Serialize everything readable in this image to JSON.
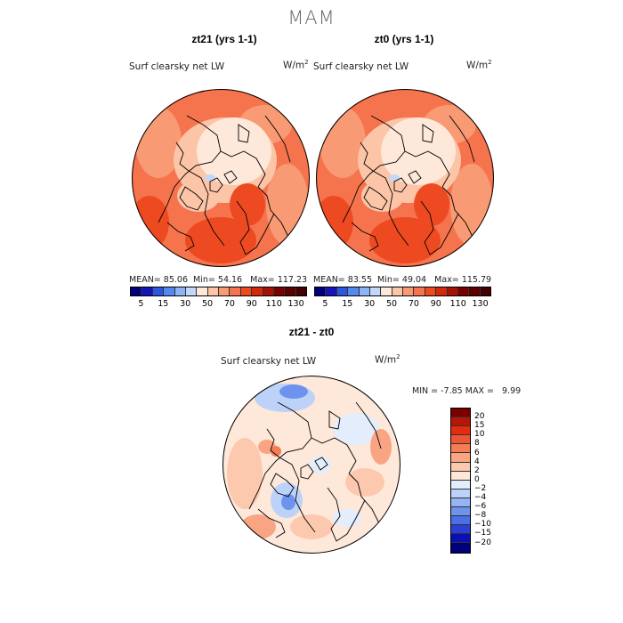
{
  "season": "MAM",
  "colors": {
    "abs": [
      "#00007a",
      "#1515b8",
      "#2c56de",
      "#5489ef",
      "#8cb3f5",
      "#c2d8f9",
      "#fde8da",
      "#fcc5a7",
      "#f89a74",
      "#f5744d",
      "#ee4a22",
      "#d42a0c",
      "#a61206",
      "#780000"
    ],
    "diff": [
      "#00007a",
      "#0a0fb0",
      "#2b3fd6",
      "#4a6fe6",
      "#6d93ef",
      "#94b4f4",
      "#bcd2f8",
      "#e3edfc",
      "#fde8da",
      "#fcc9ae",
      "#f9a583",
      "#f57d56",
      "#ef5530",
      "#e22c10",
      "#b81505",
      "#7a0000"
    ]
  },
  "chart_data": [
    {
      "type": "heatmap",
      "title": "zt21 (yrs 1-1)",
      "variable": "Surf clearsky net LW",
      "units": "W/m",
      "stats": {
        "mean_label": "MEAN=",
        "mean": "85.06",
        "min_label": "Min=",
        "min": "54.16",
        "max_label": "Max=",
        "max": "117.23"
      },
      "colorbar_ticks": [
        "5",
        "15",
        "30",
        "50",
        "70",
        "90",
        "110",
        "130"
      ],
      "colorbar_levels": [
        -1000000000.0,
        5,
        10,
        15,
        20,
        30,
        40,
        50,
        60,
        70,
        80,
        90,
        100,
        110,
        120,
        130,
        1000000000.0
      ]
    },
    {
      "type": "heatmap",
      "title": "zt0 (yrs 1-1)",
      "variable": "Surf clearsky net LW",
      "units": "W/m",
      "stats": {
        "mean_label": "MEAN=",
        "mean": "83.55",
        "min_label": "Min=",
        "min": "49.04",
        "max_label": "Max=",
        "max": "115.79"
      },
      "colorbar_ticks": [
        "5",
        "15",
        "30",
        "50",
        "70",
        "90",
        "110",
        "130"
      ]
    },
    {
      "type": "heatmap",
      "title": "zt21 - zt0",
      "variable": "Surf clearsky net LW",
      "units": "W/m",
      "stats": {
        "min_label": "MIN =",
        "min": "-7.85",
        "max_label": "MAX =",
        "max": "9.99"
      },
      "colorbar_ticks": [
        "20",
        "15",
        "10",
        "8",
        "6",
        "4",
        "2",
        "0",
        "−2",
        "−4",
        "−6",
        "−8",
        "−10",
        "−15",
        "−20"
      ]
    }
  ],
  "fills": {
    "map1": {
      "base": "#f5744d",
      "light": "#fde8da",
      "lighter": "#fcc5a7",
      "mid": "#f89a74",
      "dark": "#ee4a22",
      "blue": "#c2d8f9"
    },
    "map2": {
      "base": "#f5744d",
      "light": "#fde8da",
      "lighter": "#fcc5a7",
      "mid": "#f89a74",
      "dark": "#ee4a22",
      "blue": "#c2d8f9"
    },
    "map3": {
      "base": "#fde8da",
      "pink": "#fcc9ae",
      "orange": "#f9a583",
      "red": "#f57d56",
      "lblue": "#e3edfc",
      "blue": "#bcd2f8",
      "dblue": "#6d93ef"
    }
  }
}
